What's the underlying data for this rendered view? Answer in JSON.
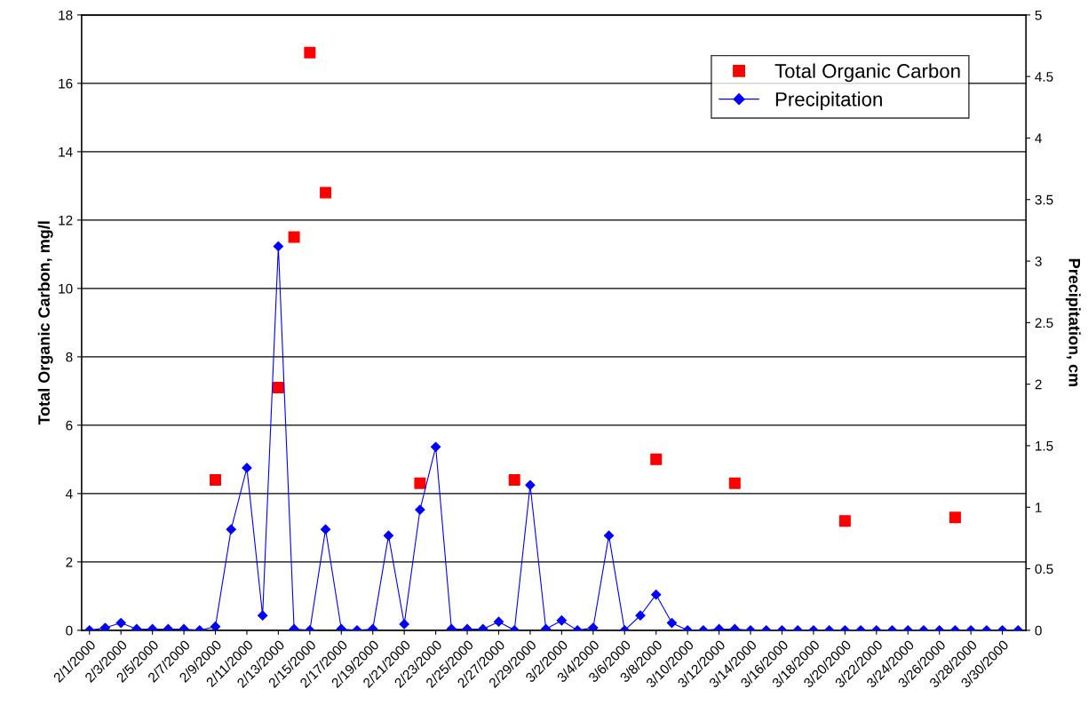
{
  "chart_data": {
    "type": "line",
    "ylabel": "Total Organic Carbon, mg/l",
    "y2label": "Precipitation, cm",
    "categories": [
      "2/1/2000",
      null,
      "2/3/2000",
      null,
      "2/5/2000",
      null,
      "2/7/2000",
      null,
      "2/9/2000",
      null,
      "2/11/2000",
      null,
      "2/13/2000",
      null,
      "2/15/2000",
      null,
      "2/17/2000",
      null,
      "2/19/2000",
      null,
      "2/21/2000",
      null,
      "2/23/2000",
      null,
      "2/25/2000",
      null,
      "2/27/2000",
      null,
      "2/29/2000",
      null,
      "3/2/2000",
      null,
      "3/4/2000",
      null,
      "3/6/2000",
      null,
      "3/8/2000",
      null,
      "3/10/2000",
      null,
      "3/12/2000",
      null,
      "3/14/2000",
      null,
      "3/16/2000",
      null,
      "3/18/2000",
      null,
      "3/20/2000",
      null,
      "3/22/2000",
      null,
      "3/24/2000",
      null,
      "3/26/2000",
      null,
      "3/28/2000",
      null,
      "3/30/2000",
      null
    ],
    "series": [
      {
        "name": "Total Organic Carbon",
        "type": "scatter",
        "marker": "square",
        "color": "#ff0000",
        "values": [
          null,
          null,
          null,
          null,
          null,
          null,
          null,
          null,
          4.4,
          null,
          null,
          null,
          7.1,
          11.5,
          16.9,
          12.8,
          null,
          null,
          null,
          null,
          null,
          4.3,
          null,
          null,
          null,
          null,
          null,
          4.4,
          null,
          null,
          null,
          null,
          null,
          null,
          null,
          null,
          5.0,
          null,
          null,
          null,
          null,
          4.3,
          null,
          null,
          null,
          null,
          null,
          null,
          3.2,
          null,
          null,
          null,
          null,
          null,
          null,
          3.3,
          null,
          null,
          null,
          null
        ]
      },
      {
        "name": "Precipitation",
        "axis": "y2",
        "marker": "diamond",
        "line_style": "solid",
        "color": "#0000ff",
        "values": [
          0,
          0.02,
          0.06,
          0.01,
          0.01,
          0.01,
          0.01,
          0,
          0.03,
          0.82,
          1.32,
          0.12,
          3.12,
          0.01,
          0,
          0.82,
          0.01,
          0,
          0.01,
          0.77,
          0.05,
          0.98,
          1.49,
          0.01,
          0.01,
          0.01,
          0.07,
          0,
          1.18,
          0.01,
          0.08,
          0,
          0.02,
          0.77,
          0,
          0.12,
          0.29,
          0.06,
          0,
          0,
          0.01,
          0.01,
          0,
          0,
          0,
          0,
          0,
          0,
          0,
          0,
          0,
          0,
          0,
          0,
          0,
          0,
          0,
          0,
          0,
          0
        ]
      }
    ],
    "ylim": [
      0,
      18
    ],
    "yticks": [
      0,
      2,
      4,
      6,
      8,
      10,
      12,
      14,
      16,
      18
    ],
    "y2lim": [
      0,
      5
    ],
    "y2ticks": [
      0,
      0.5,
      1,
      1.5,
      2,
      2.5,
      3,
      3.5,
      4,
      4.5,
      5
    ],
    "grid": "y",
    "legend": "top right"
  }
}
